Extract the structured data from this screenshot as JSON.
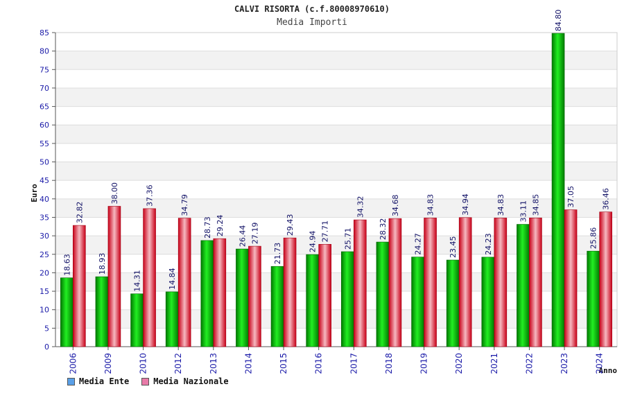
{
  "chart_data": {
    "type": "bar",
    "title": "CALVI RISORTA (c.f.80008970610)",
    "subtitle": "Media Importi",
    "ylabel": "Euro",
    "xlabel": "Anno",
    "ylim": [
      0,
      85
    ],
    "yticks": [
      0,
      5,
      10,
      15,
      20,
      25,
      30,
      35,
      40,
      45,
      50,
      55,
      60,
      65,
      70,
      75,
      80,
      85
    ],
    "grid": true,
    "categories": [
      "2006",
      "2009",
      "2010",
      "2012",
      "2013",
      "2014",
      "2015",
      "2016",
      "2017",
      "2018",
      "2019",
      "2020",
      "2021",
      "2022",
      "2023",
      "2024"
    ],
    "series": [
      {
        "name": "Media Ente",
        "color": "#00b800",
        "values": [
          18.63,
          18.93,
          14.31,
          14.84,
          28.73,
          26.44,
          21.73,
          24.94,
          25.71,
          28.32,
          24.27,
          23.45,
          24.23,
          33.11,
          84.8,
          25.86
        ],
        "labels": [
          "18.63",
          "18.93",
          "14.31",
          "14.84",
          "28.73",
          "26.44",
          "21.73",
          "24.94",
          "25.71",
          "28.32",
          "24.27",
          "23.45",
          "24.23",
          "33.11",
          "84.80",
          "25.86"
        ]
      },
      {
        "name": "Media Nazionale",
        "color": "#e8001e",
        "values": [
          32.82,
          38.0,
          37.36,
          34.79,
          29.24,
          27.19,
          29.43,
          27.71,
          34.32,
          34.68,
          34.83,
          34.94,
          34.83,
          34.85,
          37.05,
          36.46
        ],
        "labels": [
          "32.82",
          "38.00",
          "37.36",
          "34.79",
          "29.24",
          "27.19",
          "29.43",
          "27.71",
          "34.32",
          "34.68",
          "34.83",
          "34.94",
          "34.83",
          "34.85",
          "37.05",
          "36.46"
        ]
      }
    ],
    "legend": [
      {
        "label": "Media Ente",
        "color": "#5aa0e8"
      },
      {
        "label": "Media Nazionale",
        "color": "#e87aa8"
      }
    ],
    "legend_position": "bottom-left"
  }
}
